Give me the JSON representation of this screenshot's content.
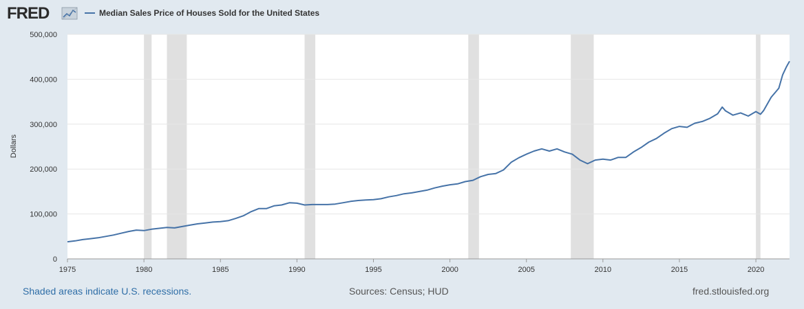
{
  "brand": {
    "logo_text": "FRED",
    "line_color": "#4572a7",
    "recession_color": "#e0e0e0"
  },
  "chart_data": {
    "type": "line",
    "title": "Median Sales Price of Houses Sold for the United States",
    "ylabel": "Dollars",
    "xlabel": "",
    "xlim": [
      1975.0,
      2022.2
    ],
    "ylim": [
      0,
      500000
    ],
    "x_ticks": [
      1975,
      1980,
      1985,
      1990,
      1995,
      2000,
      2005,
      2010,
      2015,
      2020
    ],
    "x_tick_labels": [
      "1975",
      "1980",
      "1985",
      "1990",
      "1995",
      "2000",
      "2005",
      "2010",
      "2015",
      "2020"
    ],
    "y_ticks": [
      0,
      100000,
      200000,
      300000,
      400000,
      500000
    ],
    "y_tick_labels": [
      "0",
      "100,000",
      "200,000",
      "300,000",
      "400,000",
      "500,000"
    ],
    "recessions": [
      [
        1980.0,
        1980.5
      ],
      [
        1981.5,
        1982.8
      ],
      [
        1990.5,
        1991.2
      ],
      [
        2001.2,
        2001.9
      ],
      [
        2007.9,
        2009.4
      ],
      [
        2020.0,
        2020.3
      ]
    ],
    "series": [
      {
        "name": "Median Sales Price of Houses Sold for the United States",
        "x": [
          1975.0,
          1975.5,
          1976.0,
          1976.5,
          1977.0,
          1977.5,
          1978.0,
          1978.5,
          1979.0,
          1979.5,
          1980.0,
          1980.5,
          1981.0,
          1981.5,
          1982.0,
          1982.5,
          1983.0,
          1983.5,
          1984.0,
          1984.5,
          1985.0,
          1985.5,
          1986.0,
          1986.5,
          1987.0,
          1987.5,
          1988.0,
          1988.5,
          1989.0,
          1989.5,
          1990.0,
          1990.5,
          1991.0,
          1991.5,
          1992.0,
          1992.5,
          1993.0,
          1993.5,
          1994.0,
          1994.5,
          1995.0,
          1995.5,
          1996.0,
          1996.5,
          1997.0,
          1997.5,
          1998.0,
          1998.5,
          1999.0,
          1999.5,
          2000.0,
          2000.5,
          2001.0,
          2001.5,
          2002.0,
          2002.5,
          2003.0,
          2003.5,
          2004.0,
          2004.5,
          2005.0,
          2005.5,
          2006.0,
          2006.5,
          2007.0,
          2007.5,
          2008.0,
          2008.5,
          2009.0,
          2009.5,
          2010.0,
          2010.5,
          2011.0,
          2011.5,
          2012.0,
          2012.5,
          2013.0,
          2013.5,
          2014.0,
          2014.5,
          2015.0,
          2015.5,
          2016.0,
          2016.5,
          2017.0,
          2017.5,
          2017.8,
          2018.0,
          2018.5,
          2019.0,
          2019.5,
          2020.0,
          2020.3,
          2020.5,
          2021.0,
          2021.5,
          2021.75,
          2022.0,
          2022.2
        ],
        "y": [
          38000,
          40000,
          43000,
          45000,
          47000,
          50000,
          53000,
          57000,
          61000,
          64000,
          63000,
          66000,
          68000,
          70000,
          69000,
          72000,
          75000,
          78000,
          80000,
          82000,
          83000,
          85000,
          90000,
          96000,
          105000,
          112000,
          112000,
          118000,
          120000,
          125000,
          124000,
          120000,
          121000,
          121000,
          121000,
          122000,
          125000,
          128000,
          130000,
          131000,
          132000,
          134000,
          138000,
          141000,
          145000,
          147000,
          150000,
          153000,
          158000,
          162000,
          165000,
          167000,
          172000,
          175000,
          183000,
          188000,
          190000,
          198000,
          215000,
          225000,
          233000,
          240000,
          245000,
          240000,
          245000,
          238000,
          233000,
          220000,
          212000,
          220000,
          222000,
          220000,
          226000,
          226000,
          238000,
          248000,
          260000,
          268000,
          280000,
          290000,
          295000,
          293000,
          302000,
          306000,
          313000,
          323000,
          338000,
          330000,
          320000,
          325000,
          318000,
          328000,
          322000,
          330000,
          360000,
          380000,
          410000,
          428000,
          440000
        ]
      }
    ]
  },
  "footer": {
    "left": "Shaded areas indicate U.S. recessions.",
    "center": "Sources: Census; HUD",
    "right": "fred.stlouisfed.org"
  }
}
